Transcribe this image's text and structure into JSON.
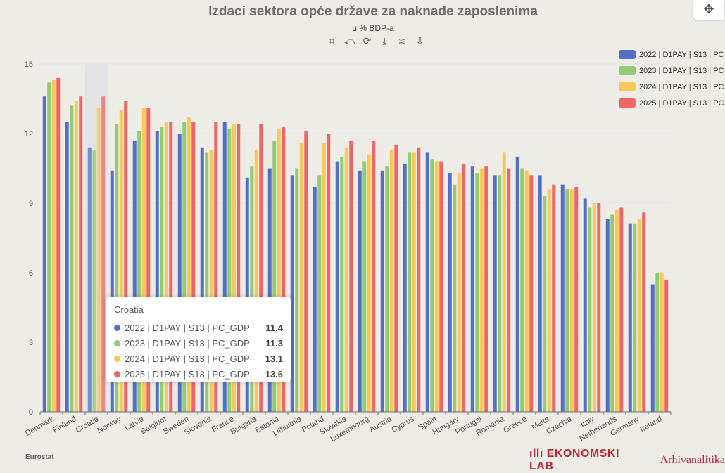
{
  "title": "Izdaci sektora opće države za naknade zaposlenima",
  "subtitle": "u % BDP-a",
  "toolbox": [
    {
      "icon": "zoom-select-icon",
      "glyph": "⌗"
    },
    {
      "icon": "zoom-reset-icon",
      "glyph": "⤺"
    },
    {
      "icon": "restore-icon",
      "glyph": "⟳"
    },
    {
      "icon": "download-icon",
      "glyph": "⤓"
    },
    {
      "icon": "layers-icon",
      "glyph": "≋"
    },
    {
      "icon": "save-image-icon",
      "glyph": "⇩"
    }
  ],
  "move_icon": "✥",
  "source": "Eurostat",
  "brand": {
    "name": "EKONOMSKI LAB",
    "logo_glyph": "ıllı",
    "partner": "Arhivanalitika"
  },
  "tooltip": {
    "title": "Croatia",
    "rows": [
      {
        "label": "2022 | D1PAY | S13 | PC_GDP",
        "value": "11.4"
      },
      {
        "label": "2023 | D1PAY | S13 | PC_GDP",
        "value": "11.3"
      },
      {
        "label": "2024 | D1PAY | S13 | PC_GDP",
        "value": "13.1"
      },
      {
        "label": "2025 | D1PAY | S13 | PC_GDP",
        "value": "13.6"
      }
    ]
  },
  "chart_data": {
    "type": "bar",
    "title": "Izdaci sektora opće države za naknade zaposlenima",
    "subtitle": "u % BDP-a",
    "ylim": [
      0,
      15
    ],
    "yticks": [
      "0",
      "3",
      "6",
      "9",
      "12",
      "15"
    ],
    "grid": true,
    "legend_position": "right",
    "highlighted_category": "Croatia",
    "categories": [
      "Denmark",
      "Finland",
      "Croatia",
      "Norway",
      "Latvia",
      "Belgium",
      "Sweden",
      "Slovenia",
      "France",
      "Bulgaria",
      "Estonia",
      "Lithuania",
      "Poland",
      "Slovakia",
      "Luxembourg",
      "Austria",
      "Cyprus",
      "Spain",
      "Hungary",
      "Portugal",
      "Romania",
      "Greece",
      "Malta",
      "Czechia",
      "Italy",
      "Netherlands",
      "Germany",
      "Ireland"
    ],
    "series": [
      {
        "name": "2022 | D1PAY | S13 | PC_GDP",
        "legend_label": "2022 | D1PAY | S13 | PC",
        "color": "#5470c6",
        "values": [
          13.6,
          12.5,
          11.4,
          10.4,
          11.7,
          12.1,
          12.0,
          11.4,
          12.5,
          10.1,
          10.5,
          10.2,
          9.7,
          10.8,
          10.4,
          10.4,
          10.7,
          11.2,
          10.3,
          10.6,
          10.2,
          11.0,
          10.2,
          9.8,
          9.2,
          8.3,
          8.1,
          5.5
        ]
      },
      {
        "name": "2023 | D1PAY | S13 | PC_GDP",
        "legend_label": "2023 | D1PAY | S13 | PC",
        "color": "#91cc75",
        "values": [
          14.2,
          13.2,
          11.3,
          12.4,
          12.1,
          12.3,
          12.5,
          11.2,
          12.2,
          10.6,
          11.7,
          10.5,
          10.2,
          11.0,
          10.8,
          10.6,
          11.2,
          10.9,
          9.8,
          10.3,
          10.2,
          10.5,
          9.3,
          9.6,
          8.8,
          8.5,
          8.1,
          6.0
        ]
      },
      {
        "name": "2024 | D1PAY | S13 | PC_GDP",
        "legend_label": "2024 | D1PAY | S13 | PC",
        "color": "#fac858",
        "values": [
          14.3,
          13.4,
          13.1,
          13.0,
          13.1,
          12.5,
          12.7,
          11.3,
          12.4,
          11.3,
          12.2,
          11.6,
          11.6,
          11.4,
          11.1,
          11.3,
          11.2,
          10.8,
          10.3,
          10.5,
          11.2,
          10.4,
          9.6,
          9.6,
          9.0,
          8.7,
          8.3,
          6.0
        ]
      },
      {
        "name": "2025 | D1PAY | S13 | PC_GDP",
        "legend_label": "2025 | D1PAY | S13 | PC",
        "color": "#ee6666",
        "values": [
          14.4,
          13.6,
          13.6,
          13.4,
          13.1,
          12.5,
          12.5,
          12.5,
          12.4,
          12.4,
          12.3,
          12.1,
          12.0,
          11.7,
          11.7,
          11.5,
          11.4,
          10.8,
          10.7,
          10.6,
          10.5,
          10.2,
          9.8,
          9.7,
          9.0,
          8.8,
          8.6,
          5.7
        ]
      }
    ]
  }
}
